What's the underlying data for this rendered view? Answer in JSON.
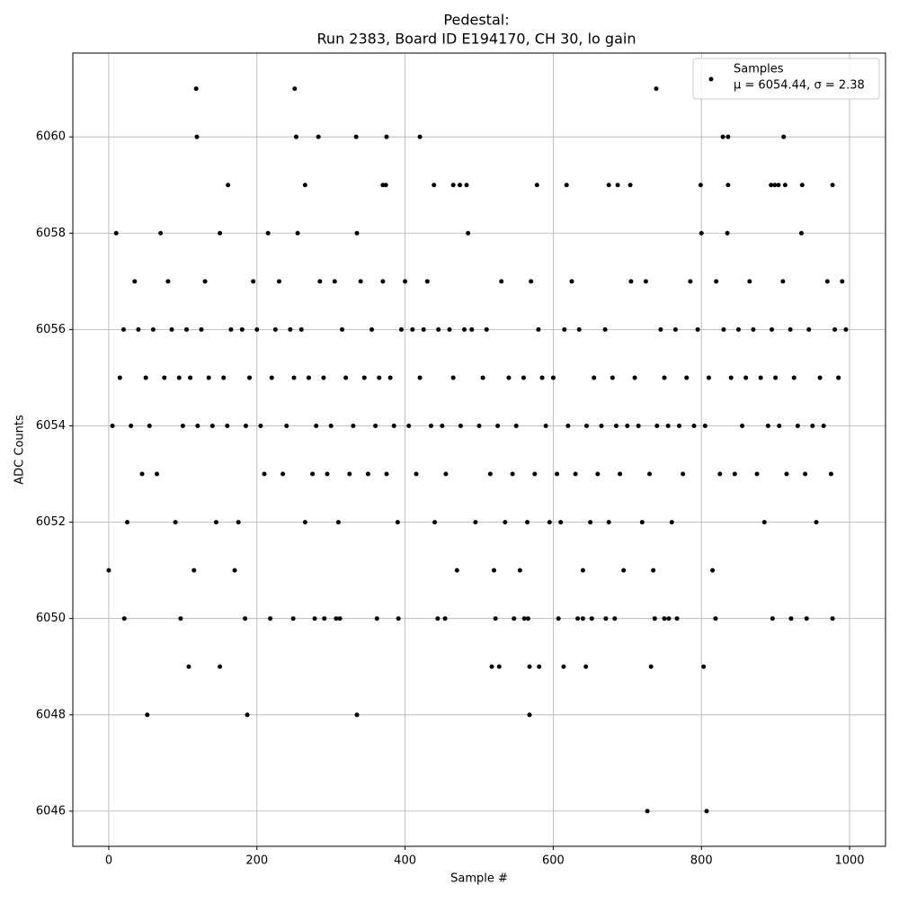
{
  "chart_data": {
    "type": "scatter",
    "title": "Pedestal:",
    "subtitle": "Run 2383, Board ID E194170, CH 30, lo gain",
    "x_label": "Sample #",
    "y_label": "ADC Counts",
    "xlim": [
      -48.5,
      1048.5
    ],
    "ylim": [
      6045.27,
      6061.74
    ],
    "xticks": [
      0,
      200,
      400,
      600,
      800,
      1000
    ],
    "yticks": [
      6046,
      6048,
      6050,
      6052,
      6054,
      6056,
      6058,
      6060
    ],
    "grid": true,
    "legend": "upper right",
    "series": [
      {
        "name": "Samples",
        "stats": "μ = 6054.44, σ = 2.38",
        "color": "#000000",
        "x": [
          0,
          5,
          10,
          15,
          20,
          25,
          30,
          35,
          40,
          45,
          50,
          55,
          60,
          65,
          70,
          75,
          80,
          85,
          90,
          95,
          100,
          105,
          110,
          115,
          120,
          125,
          130,
          135,
          140,
          145,
          150,
          155,
          160,
          165,
          170,
          175,
          180,
          185,
          190,
          195,
          200,
          205,
          210,
          215,
          220,
          225,
          230,
          235,
          240,
          245,
          250,
          255,
          260,
          265,
          270,
          275,
          280,
          285,
          290,
          295,
          300,
          305,
          310,
          315,
          320,
          325,
          330,
          335,
          340,
          345,
          350,
          355,
          360,
          365,
          370,
          375,
          380,
          385,
          390,
          395,
          400,
          405,
          410,
          415,
          420,
          425,
          430,
          435,
          440,
          445,
          450,
          455,
          460,
          465,
          470,
          475,
          480,
          485,
          490,
          495,
          500,
          505,
          510,
          515,
          520,
          525,
          530,
          535,
          540,
          545,
          550,
          555,
          560,
          565,
          570,
          575,
          580,
          585,
          590,
          595,
          600,
          605,
          610,
          615,
          620,
          625,
          630,
          635,
          640,
          645,
          650,
          655,
          660,
          665,
          670,
          675,
          680,
          685,
          690,
          695,
          700,
          705,
          710,
          715,
          720,
          725,
          730,
          735,
          740,
          745,
          750,
          755,
          760,
          765,
          770,
          775,
          780,
          785,
          790,
          795,
          800,
          805,
          810,
          815,
          820,
          825,
          830,
          835,
          840,
          845,
          850,
          855,
          860,
          865,
          870,
          875,
          880,
          885,
          890,
          895,
          900,
          905,
          910,
          915,
          920,
          925,
          930,
          935,
          940,
          945,
          950,
          955,
          960,
          965,
          970,
          975,
          980,
          985,
          990,
          995,
          118,
          251,
          739,
          119,
          253,
          283,
          334,
          375,
          420,
          829,
          836,
          911,
          161,
          265,
          370,
          374,
          439,
          465,
          474,
          483,
          578,
          618,
          675,
          687,
          704,
          799,
          836,
          894,
          899,
          904,
          913,
          936,
          977,
          52,
          187,
          335,
          568,
          727,
          807,
          108,
          150,
          517,
          527,
          568,
          581,
          614,
          644,
          732,
          803,
          21,
          97,
          184,
          218,
          249,
          278,
          291,
          307,
          312,
          362,
          391,
          444,
          454,
          522,
          547,
          561,
          566,
          607,
          633,
          640,
          652,
          671,
          683,
          737,
          750,
          756,
          767,
          819,
          896,
          921,
          942,
          977
        ],
        "values": [
          6051,
          6054,
          6058,
          6055,
          6056,
          6052,
          6054,
          6057,
          6056,
          6053,
          6055,
          6054,
          6056,
          6053,
          6058,
          6055,
          6057,
          6056,
          6052,
          6055,
          6054,
          6056,
          6055,
          6051,
          6054,
          6056,
          6057,
          6055,
          6054,
          6052,
          6058,
          6055,
          6054,
          6056,
          6051,
          6052,
          6056,
          6054,
          6055,
          6057,
          6056,
          6054,
          6053,
          6058,
          6055,
          6056,
          6057,
          6053,
          6054,
          6056,
          6055,
          6058,
          6056,
          6052,
          6055,
          6053,
          6054,
          6057,
          6055,
          6053,
          6054,
          6057,
          6052,
          6056,
          6055,
          6053,
          6054,
          6058,
          6057,
          6055,
          6053,
          6056,
          6054,
          6055,
          6057,
          6053,
          6055,
          6054,
          6052,
          6056,
          6057,
          6054,
          6056,
          6053,
          6055,
          6056,
          6057,
          6054,
          6052,
          6056,
          6054,
          6053,
          6056,
          6055,
          6051,
          6054,
          6056,
          6058,
          6056,
          6052,
          6054,
          6055,
          6056,
          6053,
          6051,
          6054,
          6057,
          6052,
          6055,
          6053,
          6054,
          6051,
          6055,
          6052,
          6057,
          6053,
          6056,
          6055,
          6054,
          6052,
          6055,
          6053,
          6052,
          6056,
          6054,
          6057,
          6053,
          6056,
          6051,
          6054,
          6052,
          6055,
          6053,
          6054,
          6056,
          6052,
          6055,
          6054,
          6053,
          6051,
          6054,
          6057,
          6055,
          6054,
          6052,
          6057,
          6053,
          6051,
          6054,
          6056,
          6055,
          6054,
          6052,
          6056,
          6054,
          6053,
          6055,
          6057,
          6054,
          6056,
          6058,
          6054,
          6055,
          6051,
          6057,
          6053,
          6056,
          6058,
          6055,
          6053,
          6056,
          6054,
          6055,
          6057,
          6056,
          6053,
          6055,
          6052,
          6054,
          6056,
          6055,
          6054,
          6057,
          6053,
          6056,
          6055,
          6054,
          6058,
          6053,
          6056,
          6054,
          6052,
          6055,
          6054,
          6057,
          6053,
          6056,
          6055,
          6057,
          6056,
          6061,
          6061,
          6061,
          6060,
          6060,
          6060,
          6060,
          6060,
          6060,
          6060,
          6060,
          6060,
          6059,
          6059,
          6059,
          6059,
          6059,
          6059,
          6059,
          6059,
          6059,
          6059,
          6059,
          6059,
          6059,
          6059,
          6059,
          6059,
          6059,
          6059,
          6059,
          6059,
          6059,
          6048,
          6048,
          6048,
          6048,
          6046,
          6046,
          6049,
          6049,
          6049,
          6049,
          6049,
          6049,
          6049,
          6049,
          6049,
          6049,
          6050,
          6050,
          6050,
          6050,
          6050,
          6050,
          6050,
          6050,
          6050,
          6050,
          6050,
          6050,
          6050,
          6050,
          6050,
          6050,
          6050,
          6050,
          6050,
          6050,
          6050,
          6050,
          6050,
          6050,
          6050,
          6050,
          6050,
          6050,
          6050,
          6050,
          6050,
          6050
        ]
      }
    ]
  }
}
